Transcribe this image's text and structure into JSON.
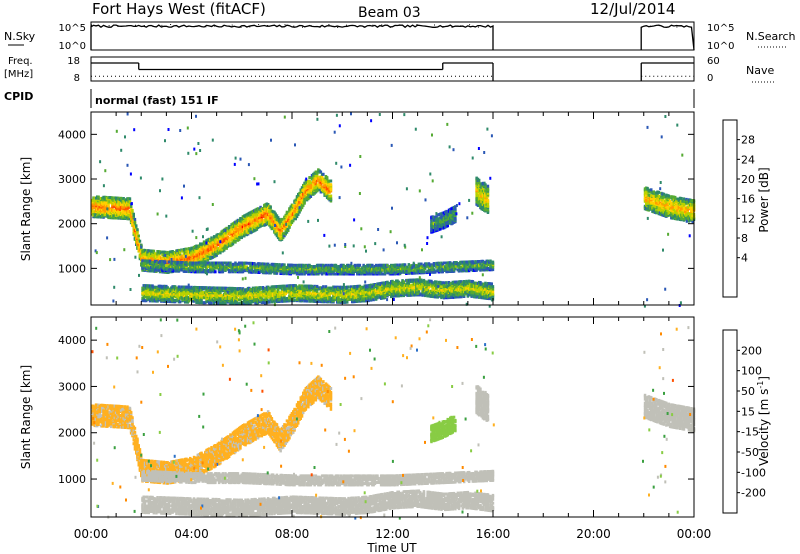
{
  "header": {
    "station": "Fort Hays West (fitACF)",
    "beam": "Beam 03",
    "date": "12/Jul/2014"
  },
  "panels": {
    "nsky": {
      "left_label": "N.Sky",
      "ytick_top": "10^5",
      "ytick_bottom": "10^0",
      "right_label": "N.Search",
      "right_ytick_top": "10^5",
      "right_ytick_bottom": "10^0"
    },
    "freq": {
      "left_label_1": "Freq.",
      "left_label_2": "[MHz]",
      "ytick_top": "18",
      "ytick_bottom": "8",
      "right_label": "Nave",
      "right_ytick_top": "60",
      "right_ytick_bottom": "0"
    },
    "cpid": {
      "label": "CPID",
      "mode": "normal (fast) 151 IF"
    },
    "power": {
      "ylabel": "Slant Range [km]",
      "colorbar_label": "Power [dB]",
      "colorbar_ticks": [
        "28",
        "24",
        "20",
        "16",
        "12",
        "8",
        "4"
      ],
      "colorbar_colors": [
        "#ff0000",
        "#ff5000",
        "#ff9a00",
        "#ffd000",
        "#b9d200",
        "#55aa33",
        "#2f8a6a",
        "#2a57b5",
        "#0000ff"
      ]
    },
    "velocity": {
      "ylabel": "Slant Range [km]",
      "colorbar_label_main": "Velocity [m s",
      "colorbar_label_sup": "-1",
      "colorbar_label_end": "]",
      "colorbar_ticks": [
        "200",
        "100",
        "50",
        "15",
        "-15",
        "-50",
        "-100",
        "-200"
      ],
      "colorbar_colors": [
        "#2040c0",
        "#2a6fc8",
        "#3aa040",
        "#88cc44",
        "#c0c0b8",
        "#ffb020",
        "#ff8a00",
        "#ff5000",
        "#ff0000"
      ]
    }
  },
  "xaxis": {
    "label": "Time UT",
    "ticks": [
      "00:00",
      "04:00",
      "08:00",
      "12:00",
      "16:00",
      "20:00",
      "00:00"
    ]
  },
  "chart_data": {
    "type": "heatmap",
    "x_range_hours": [
      0,
      24
    ],
    "y_range_km": [
      180,
      4500
    ],
    "y_ticks_km": [
      1000,
      2000,
      3000,
      4000
    ],
    "data_gap_hours": [
      16.0,
      21.9
    ],
    "power_scale_db": [
      0,
      30
    ],
    "velocity_scale_ms": [
      -250,
      250
    ],
    "scatter_bands": [
      {
        "x": [
          0.0,
          1.5,
          2.0,
          3.0,
          4.0,
          5.0,
          6.0,
          7.0,
          7.5,
          8.0,
          8.5,
          9.0,
          9.5
        ],
        "y": [
          2350,
          2300,
          1150,
          1100,
          1200,
          1500,
          1900,
          2200,
          1800,
          2200,
          2700,
          2950,
          2700
        ],
        "width_km": 450,
        "power": 20,
        "velocity": -40
      },
      {
        "x": [
          2.0,
          4.0,
          6.0,
          8.0,
          10.0,
          12.0,
          14.0,
          16.0
        ],
        "y": [
          1050,
          1000,
          1000,
          950,
          950,
          950,
          1000,
          1050
        ],
        "width_km": 220,
        "power": 10,
        "velocity": 5
      },
      {
        "x": [
          2.0,
          4.0,
          6.0,
          8.0,
          10.0,
          11.0,
          12.0,
          13.0,
          14.0,
          15.0,
          16.0
        ],
        "y": [
          420,
          380,
          350,
          420,
          380,
          420,
          520,
          550,
          480,
          520,
          450
        ],
        "width_km": 350,
        "power": 14,
        "velocity": 0
      },
      {
        "x": [
          13.5,
          14.0,
          14.5
        ],
        "y": [
          1950,
          2050,
          2200
        ],
        "width_km": 350,
        "power": 9,
        "velocity": 55
      },
      {
        "x": [
          15.3,
          15.5,
          15.8
        ],
        "y": [
          2700,
          2600,
          2500
        ],
        "width_km": 600,
        "power": 16,
        "velocity": 0
      },
      {
        "x": [
          22.0,
          22.5,
          23.0,
          23.5,
          24.0
        ],
        "y": [
          2550,
          2450,
          2350,
          2300,
          2250
        ],
        "width_km": 500,
        "power": 17,
        "velocity": 0
      }
    ],
    "nsky_level": 0.85,
    "freq_segments_mhz": [
      {
        "x": [
          0.0,
          1.9
        ],
        "value": 15.5
      },
      {
        "x": [
          1.9,
          14.0
        ],
        "value": 12.8
      },
      {
        "x": [
          14.0,
          16.0
        ],
        "value": 15.5
      },
      {
        "x": [
          21.9,
          24.0
        ],
        "value": 15.5
      }
    ],
    "nave_level": 12
  }
}
